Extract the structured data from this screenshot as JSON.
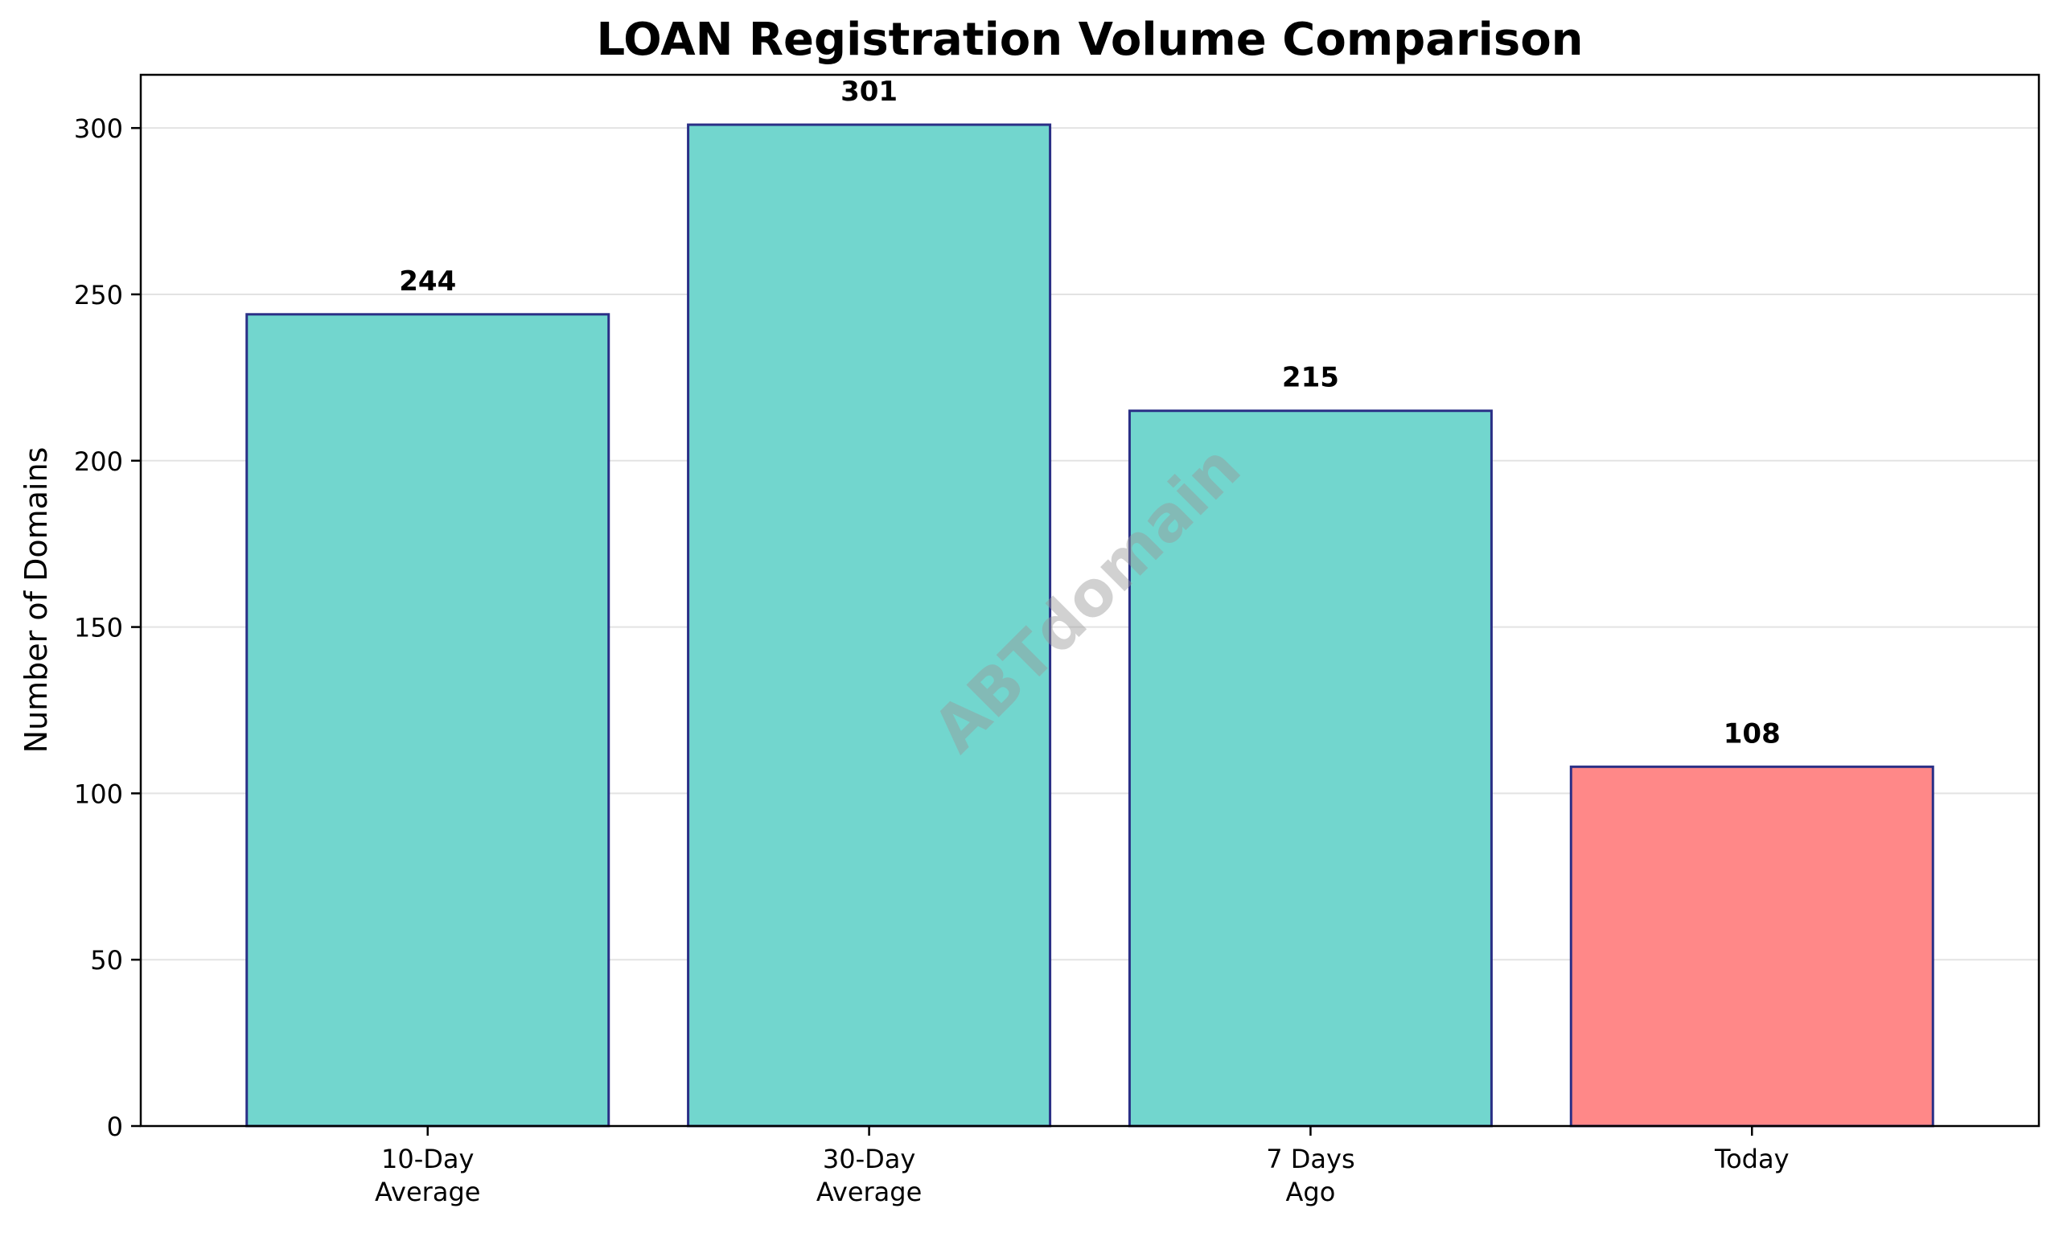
{
  "chart_data": {
    "type": "bar",
    "title": "LOAN Registration Volume Comparison",
    "xlabel": "",
    "ylabel": "Number of Domains",
    "categories": [
      [
        "10-Day",
        "Average"
      ],
      [
        "30-Day",
        "Average"
      ],
      [
        "7 Days",
        "Ago"
      ],
      [
        "Today"
      ]
    ],
    "values": [
      244,
      301,
      215,
      108
    ],
    "value_labels": [
      "244",
      "301",
      "215",
      "108"
    ],
    "bar_colors": [
      "#72d6ce",
      "#72d6ce",
      "#72d6ce",
      "#ff8888"
    ],
    "bar_edge_color": "#2a2f86",
    "ylim": [
      0,
      316
    ],
    "yticks": [
      0,
      50,
      100,
      150,
      200,
      250,
      300
    ],
    "grid": "horizontal",
    "legend": "none",
    "watermark": "ABTdomain"
  }
}
